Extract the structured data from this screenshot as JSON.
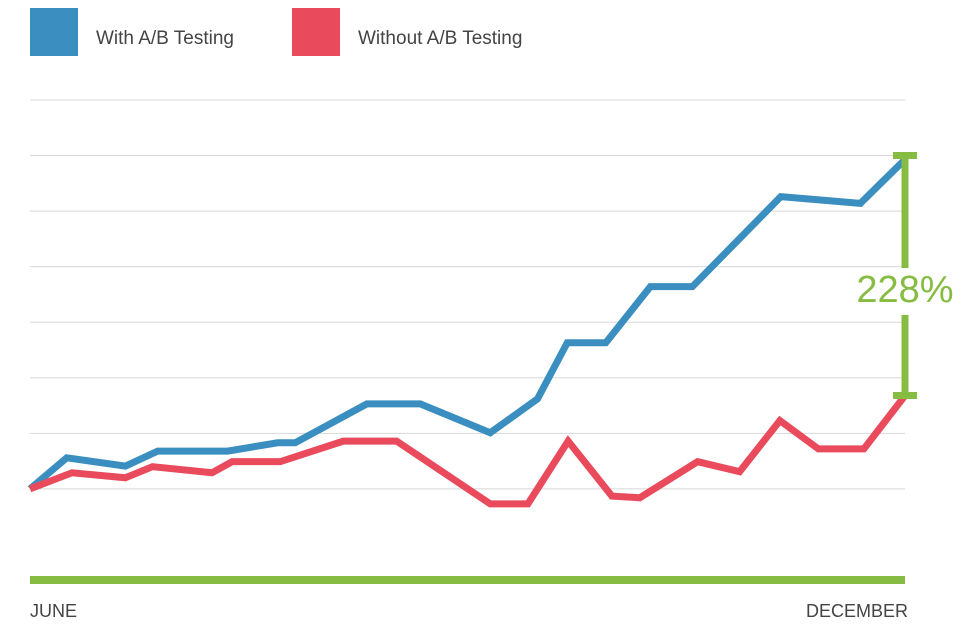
{
  "chart_data": {
    "type": "line",
    "x_labels": [
      "JUNE",
      "DECEMBER"
    ],
    "annotation": "228%",
    "annotation_color": "#86bc42",
    "legend": "top-left",
    "grid": true,
    "xlim": [
      0,
      100
    ],
    "ylim": [
      -1.64,
      7
    ],
    "yticks": [
      0,
      1,
      2,
      3,
      4,
      5,
      6,
      7
    ],
    "series": [
      {
        "name": "With A/B Testing",
        "color": "#3b8fc0",
        "x": [
          0,
          4.2,
          10.9,
          14.6,
          22.6,
          28.3,
          30.3,
          38.5,
          44.6,
          52.6,
          58,
          61.4,
          65.8,
          70.9,
          75.7,
          85.8,
          94.9,
          100
        ],
        "values": [
          0,
          0.56,
          0.41,
          0.68,
          0.68,
          0.83,
          0.83,
          1.53,
          1.53,
          1.01,
          1.62,
          2.63,
          2.63,
          3.64,
          3.64,
          5.26,
          5.14,
          5.93
        ]
      },
      {
        "name": "Without A/B Testing",
        "color": "#e94b5c",
        "x": [
          0,
          4.8,
          10.9,
          14,
          20.8,
          23.1,
          28.6,
          35.8,
          41.9,
          52.6,
          56.9,
          61.5,
          66.5,
          69.7,
          76.3,
          81.1,
          85.7,
          90.1,
          95.3,
          100
        ],
        "values": [
          0,
          0.29,
          0.2,
          0.4,
          0.29,
          0.49,
          0.49,
          0.86,
          0.86,
          -0.27,
          -0.27,
          0.86,
          -0.13,
          -0.16,
          0.49,
          0.31,
          1.23,
          0.72,
          0.72,
          1.68
        ]
      }
    ]
  }
}
